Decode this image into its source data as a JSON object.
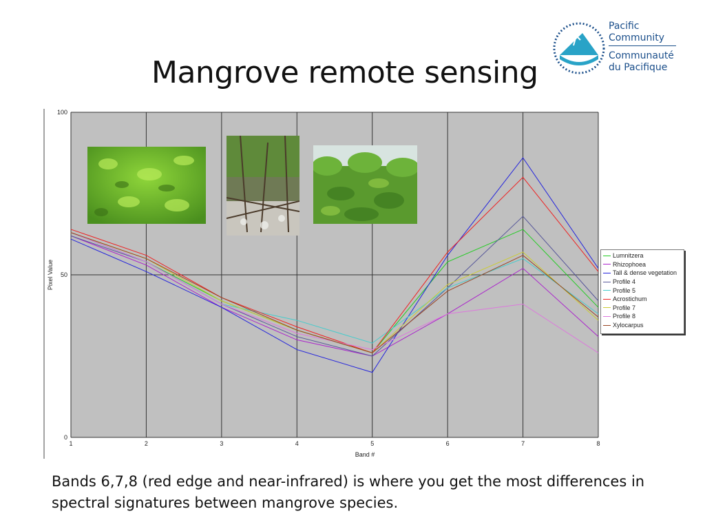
{
  "slide": {
    "title": "Mangrove remote sensing",
    "caption_line1": "Bands 6,7,8 (red edge and near-infrared) is where you get the most differences in",
    "caption_line2": "spectral signatures between mangrove species."
  },
  "logo": {
    "line1": "Pacific",
    "line2": "Community",
    "line3": "Communauté",
    "line4": "du Pacifique"
  },
  "chart_data": {
    "type": "line",
    "xlabel": "Band #",
    "ylabel": "Pixel Value",
    "x": [
      1,
      2,
      3,
      4,
      5,
      6,
      7,
      8
    ],
    "xlim": [
      1,
      8
    ],
    "ylim": [
      0,
      100
    ],
    "yticks": [
      0,
      50,
      100
    ],
    "grid": true,
    "legend": "right",
    "series": [
      {
        "name": "Lumnitzera",
        "color": "#22cc22",
        "values": [
          63,
          54,
          42,
          33,
          26,
          54,
          64,
          40
        ]
      },
      {
        "name": "Rhizophoea",
        "color": "#aa22cc",
        "values": [
          62,
          53,
          40,
          30,
          25,
          38,
          52,
          31
        ]
      },
      {
        "name": "Tall & dense vegetation",
        "color": "#2222dd",
        "values": [
          61,
          51,
          40,
          27,
          20,
          56,
          86,
          52
        ]
      },
      {
        "name": "Profile 4",
        "color": "#555599",
        "values": [
          62,
          54,
          41,
          31,
          25,
          46,
          68,
          42
        ]
      },
      {
        "name": "Profile 5",
        "color": "#44cccc",
        "values": [
          63,
          54,
          41,
          36,
          29,
          46,
          55,
          38
        ]
      },
      {
        "name": "Acrostichum",
        "color": "#ee2222",
        "values": [
          64,
          56,
          43,
          34,
          26,
          57,
          80,
          51
        ]
      },
      {
        "name": "Profile 7",
        "color": "#cccc33",
        "values": [
          63,
          55,
          42,
          33,
          26,
          47,
          57,
          36
        ]
      },
      {
        "name": "Profile 8",
        "color": "#dd77dd",
        "values": [
          63,
          54,
          41,
          32,
          27,
          38,
          41,
          26
        ]
      },
      {
        "name": "Xylocarpus",
        "color": "#994422",
        "values": [
          63,
          55,
          43,
          33,
          26,
          45,
          56,
          37
        ]
      }
    ]
  }
}
